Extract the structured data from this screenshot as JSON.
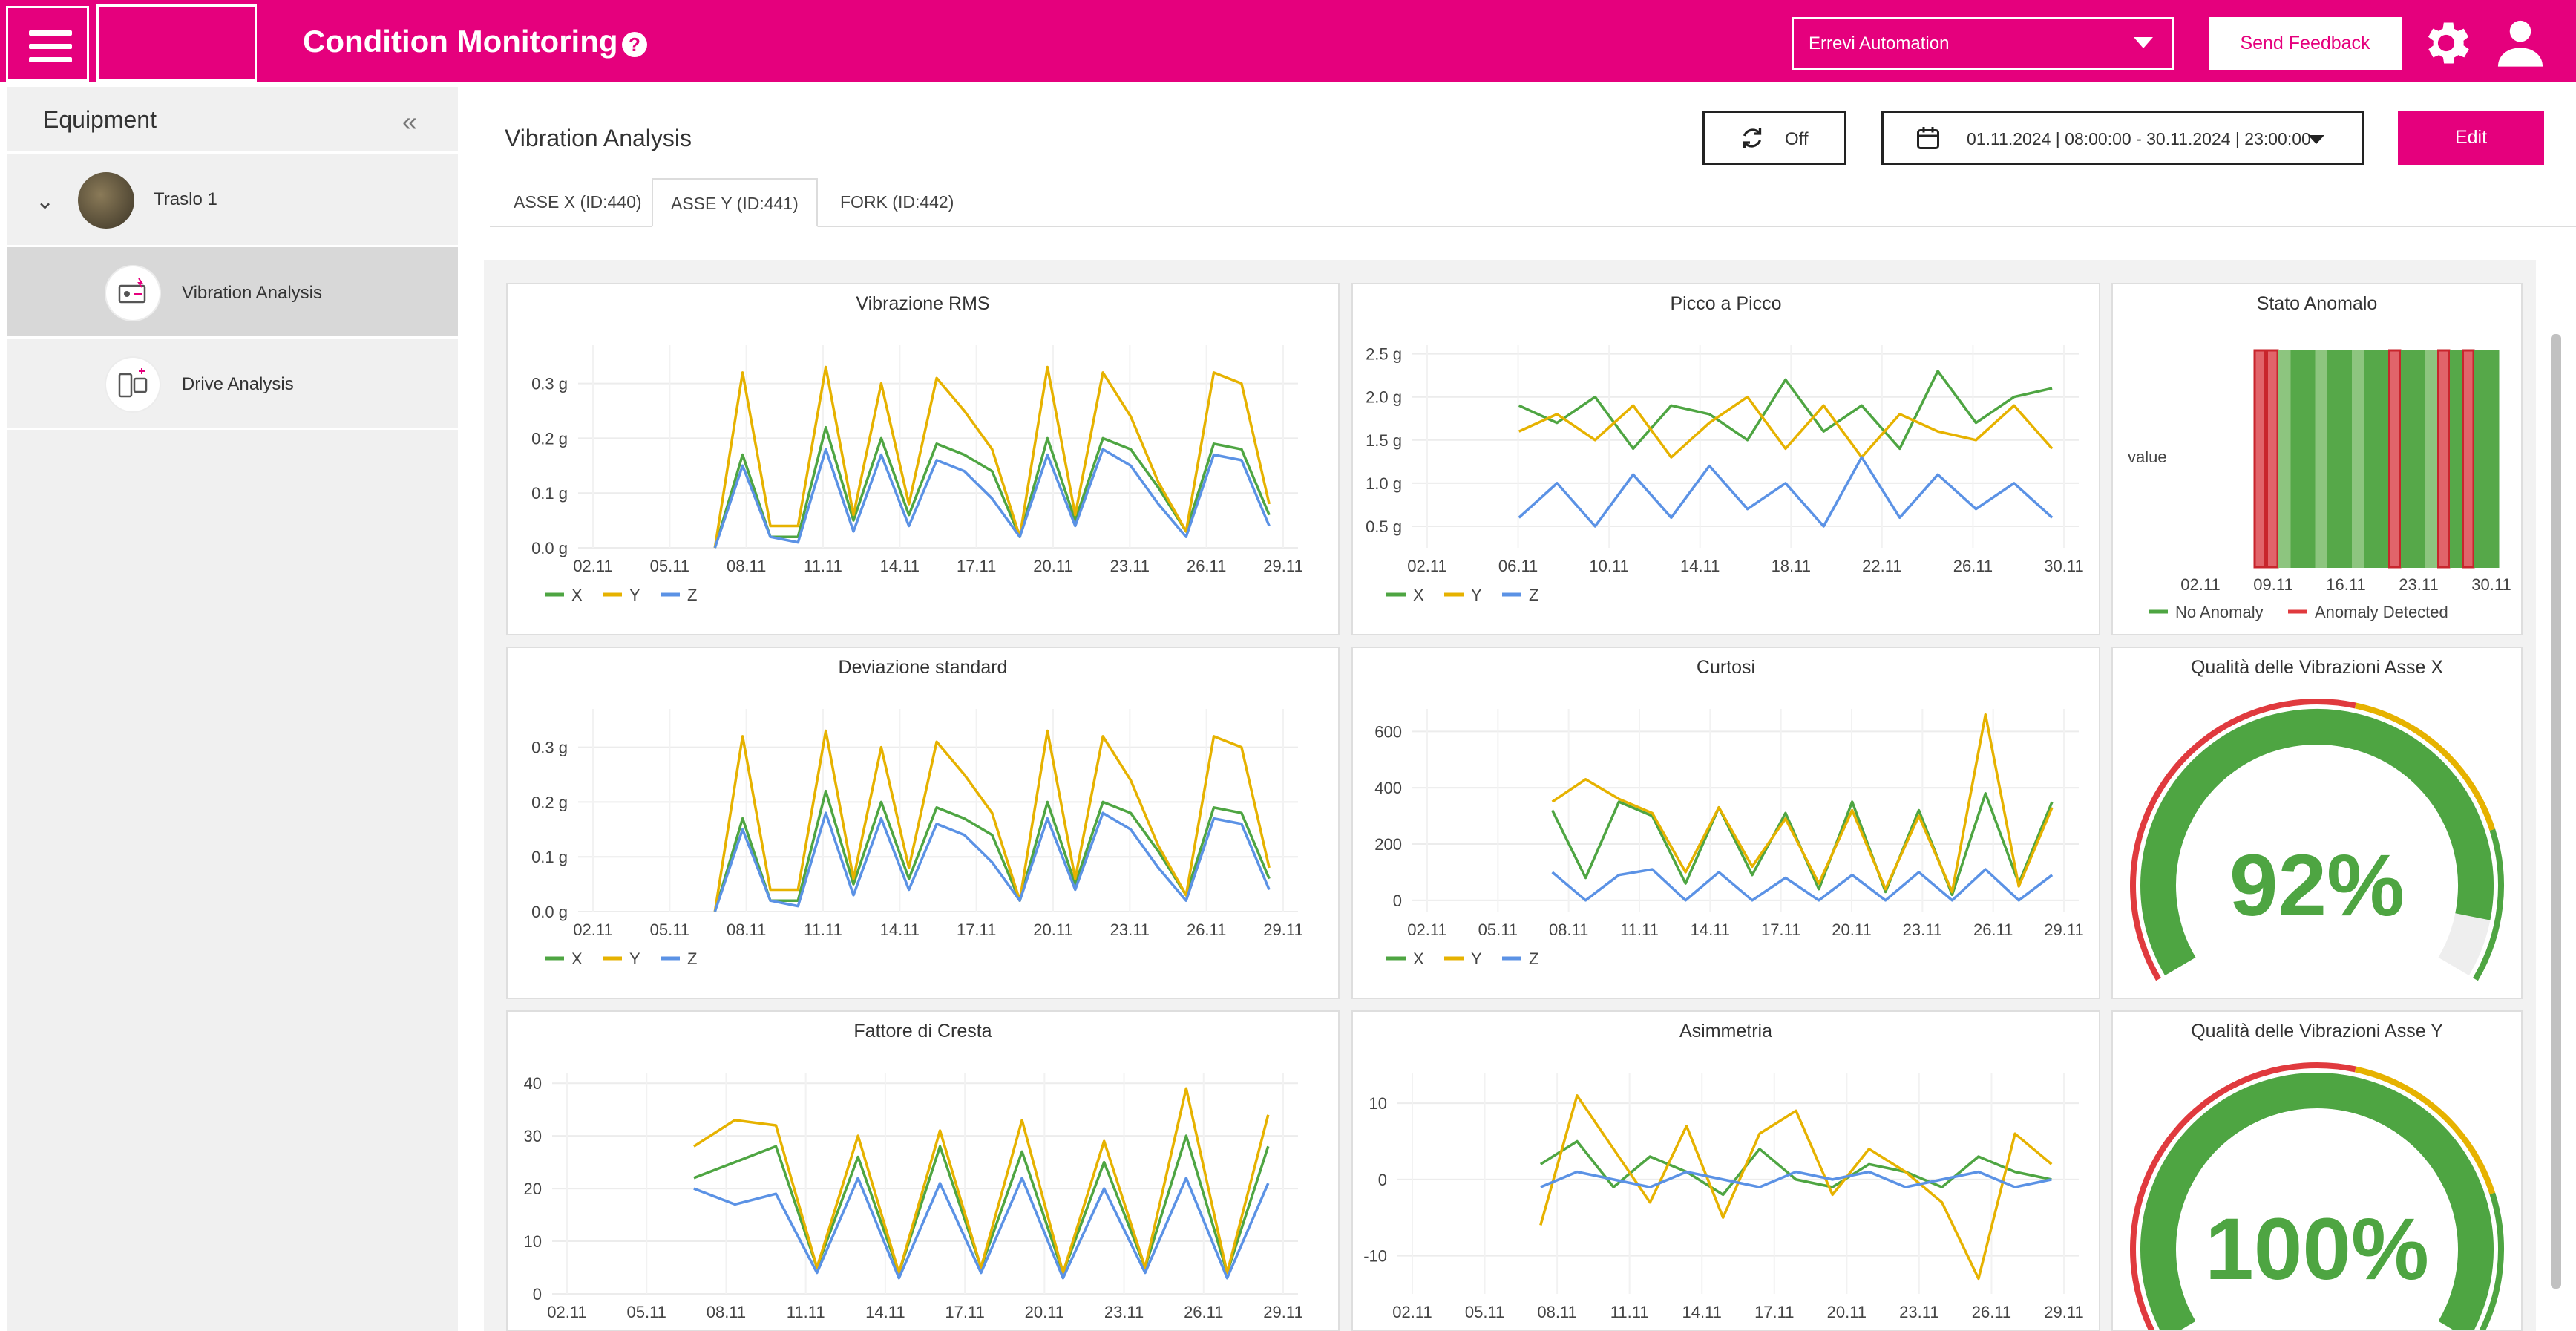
{
  "app": {
    "title": "Condition Monitoring"
  },
  "header": {
    "organization": "Errevi Automation",
    "feedback_label": "Send Feedback"
  },
  "sidebar": {
    "title": "Equipment",
    "items": [
      {
        "label": "Traslo 1"
      },
      {
        "label": "Vibration Analysis"
      },
      {
        "label": "Drive Analysis"
      }
    ]
  },
  "main": {
    "title": "Vibration Analysis",
    "refresh_label": "Off",
    "date_range": "01.11.2024 | 08:00:00 - 30.11.2024 | 23:00:00",
    "edit_label": "Edit",
    "tabs": [
      {
        "label": "ASSE X (ID:440)"
      },
      {
        "label": "ASSE Y (ID:441)"
      },
      {
        "label": "FORK (ID:442)"
      }
    ],
    "active_tab": "ASSE Y (ID:441)"
  },
  "colors": {
    "brand": "#e5007d",
    "series_x": "#4ea542",
    "series_y": "#e6b200",
    "series_z": "#5b92e5",
    "anomaly": "#e03a3e"
  },
  "chart_data": [
    {
      "type": "line",
      "title": "Vibrazione RMS",
      "x_ticks": [
        "02.11",
        "05.11",
        "08.11",
        "11.11",
        "14.11",
        "17.11",
        "20.11",
        "23.11",
        "26.11",
        "29.11"
      ],
      "y_ticks": [
        "0.0 g",
        "0.1 g",
        "0.2 g",
        "0.3 g"
      ],
      "ylim": [
        0,
        0.37
      ],
      "legend": [
        "X",
        "Y",
        "Z"
      ],
      "series": [
        {
          "name": "X",
          "values": [
            0.0,
            0.17,
            0.02,
            0.02,
            0.22,
            0.05,
            0.2,
            0.06,
            0.19,
            0.17,
            0.14,
            0.02,
            0.2,
            0.05,
            0.2,
            0.18,
            0.11,
            0.03,
            0.19,
            0.18,
            0.06
          ]
        },
        {
          "name": "Y",
          "values": [
            0.0,
            0.32,
            0.04,
            0.04,
            0.33,
            0.06,
            0.3,
            0.08,
            0.31,
            0.25,
            0.18,
            0.02,
            0.33,
            0.06,
            0.32,
            0.24,
            0.12,
            0.03,
            0.32,
            0.3,
            0.08
          ]
        },
        {
          "name": "Z",
          "values": [
            0.0,
            0.15,
            0.02,
            0.01,
            0.18,
            0.03,
            0.17,
            0.04,
            0.16,
            0.14,
            0.09,
            0.02,
            0.17,
            0.04,
            0.18,
            0.15,
            0.08,
            0.02,
            0.17,
            0.16,
            0.04
          ]
        }
      ]
    },
    {
      "type": "line",
      "title": "Picco a Picco",
      "x_ticks": [
        "02.11",
        "06.11",
        "10.11",
        "14.11",
        "18.11",
        "22.11",
        "26.11",
        "30.11"
      ],
      "y_ticks": [
        "0.5 g",
        "1.0 g",
        "1.5 g",
        "2.0 g",
        "2.5 g"
      ],
      "ylim": [
        0.25,
        2.6
      ],
      "legend": [
        "X",
        "Y",
        "Z"
      ],
      "series": [
        {
          "name": "X",
          "values": [
            1.9,
            1.7,
            2.0,
            1.4,
            1.9,
            1.8,
            1.5,
            2.2,
            1.6,
            1.9,
            1.4,
            2.3,
            1.7,
            2.0,
            2.1
          ]
        },
        {
          "name": "Y",
          "values": [
            1.6,
            1.8,
            1.5,
            1.9,
            1.3,
            1.7,
            2.0,
            1.4,
            1.9,
            1.3,
            1.8,
            1.6,
            1.5,
            1.9,
            1.4
          ]
        },
        {
          "name": "Z",
          "values": [
            0.6,
            1.0,
            0.5,
            1.1,
            0.6,
            1.2,
            0.7,
            1.0,
            0.5,
            1.3,
            0.6,
            1.1,
            0.7,
            1.0,
            0.6
          ]
        }
      ]
    },
    {
      "type": "heatmap",
      "title": "Stato Anomalo",
      "y_label": "value",
      "x_ticks": [
        "02.11",
        "09.11",
        "16.11",
        "23.11",
        "30.11"
      ],
      "legend": [
        "No Anomaly",
        "Anomaly Detected"
      ],
      "states": [
        1,
        1,
        0,
        0,
        0,
        0,
        0,
        0,
        0,
        0,
        0,
        1,
        0,
        0,
        0,
        1,
        0,
        1,
        0,
        0
      ]
    },
    {
      "type": "line",
      "title": "Deviazione standard",
      "x_ticks": [
        "02.11",
        "05.11",
        "08.11",
        "11.11",
        "14.11",
        "17.11",
        "20.11",
        "23.11",
        "26.11",
        "29.11"
      ],
      "y_ticks": [
        "0.0 g",
        "0.1 g",
        "0.2 g",
        "0.3 g"
      ],
      "ylim": [
        0,
        0.37
      ],
      "legend": [
        "X",
        "Y",
        "Z"
      ],
      "series": [
        {
          "name": "X",
          "values": [
            0.0,
            0.17,
            0.02,
            0.02,
            0.22,
            0.05,
            0.2,
            0.06,
            0.19,
            0.17,
            0.14,
            0.02,
            0.2,
            0.05,
            0.2,
            0.18,
            0.11,
            0.03,
            0.19,
            0.18,
            0.06
          ]
        },
        {
          "name": "Y",
          "values": [
            0.0,
            0.32,
            0.04,
            0.04,
            0.33,
            0.06,
            0.3,
            0.08,
            0.31,
            0.25,
            0.18,
            0.02,
            0.33,
            0.06,
            0.32,
            0.24,
            0.12,
            0.03,
            0.32,
            0.3,
            0.08
          ]
        },
        {
          "name": "Z",
          "values": [
            0.0,
            0.15,
            0.02,
            0.01,
            0.18,
            0.03,
            0.17,
            0.04,
            0.16,
            0.14,
            0.09,
            0.02,
            0.17,
            0.04,
            0.18,
            0.15,
            0.08,
            0.02,
            0.17,
            0.16,
            0.04
          ]
        }
      ]
    },
    {
      "type": "line",
      "title": "Curtosi",
      "x_ticks": [
        "02.11",
        "05.11",
        "08.11",
        "11.11",
        "14.11",
        "17.11",
        "20.11",
        "23.11",
        "26.11",
        "29.11"
      ],
      "y_ticks": [
        "0",
        "200",
        "400",
        "600"
      ],
      "ylim": [
        -40,
        680
      ],
      "legend": [
        "X",
        "Y",
        "Z"
      ],
      "series": [
        {
          "name": "X",
          "values": [
            320,
            80,
            350,
            300,
            60,
            330,
            90,
            310,
            40,
            350,
            30,
            320,
            20,
            380,
            60,
            350
          ]
        },
        {
          "name": "Y",
          "values": [
            350,
            430,
            360,
            310,
            100,
            330,
            120,
            290,
            60,
            320,
            40,
            300,
            30,
            660,
            50,
            330
          ]
        },
        {
          "name": "Z",
          "values": [
            100,
            0,
            90,
            110,
            0,
            100,
            0,
            80,
            0,
            90,
            0,
            100,
            0,
            110,
            0,
            90
          ]
        }
      ]
    },
    {
      "type": "gauge",
      "title": "Qualità delle Vibrazioni Asse X",
      "value": 92,
      "label": "92%"
    },
    {
      "type": "line",
      "title": "Fattore di Cresta",
      "x_ticks": [
        "02.11",
        "05.11",
        "08.11",
        "11.11",
        "14.11",
        "17.11",
        "20.11",
        "23.11",
        "26.11",
        "29.11"
      ],
      "y_ticks": [
        "0",
        "10",
        "20",
        "30",
        "40"
      ],
      "ylim": [
        0,
        42
      ],
      "legend": [
        "X",
        "Y",
        "Z"
      ],
      "series": [
        {
          "name": "X",
          "values": [
            22,
            25,
            28,
            5,
            26,
            4,
            28,
            5,
            27,
            4,
            25,
            5,
            30,
            4,
            28
          ]
        },
        {
          "name": "Y",
          "values": [
            28,
            33,
            32,
            5,
            30,
            4,
            31,
            5,
            33,
            4,
            29,
            5,
            39,
            4,
            34
          ]
        },
        {
          "name": "Z",
          "values": [
            20,
            17,
            19,
            4,
            22,
            3,
            21,
            4,
            22,
            3,
            20,
            4,
            22,
            3,
            21
          ]
        }
      ]
    },
    {
      "type": "line",
      "title": "Asimmetria",
      "x_ticks": [
        "02.11",
        "05.11",
        "08.11",
        "11.11",
        "14.11",
        "17.11",
        "20.11",
        "23.11",
        "26.11",
        "29.11"
      ],
      "y_ticks": [
        "-10",
        "0",
        "10"
      ],
      "ylim": [
        -15,
        14
      ],
      "legend": [
        "X",
        "Y",
        "Z"
      ],
      "series": [
        {
          "name": "X",
          "values": [
            2,
            5,
            -1,
            3,
            1,
            -2,
            4,
            0,
            -1,
            2,
            1,
            -1,
            3,
            1,
            0
          ]
        },
        {
          "name": "Y",
          "values": [
            -6,
            11,
            4,
            -3,
            7,
            -5,
            6,
            9,
            -2,
            4,
            1,
            -3,
            -13,
            6,
            2
          ]
        },
        {
          "name": "Z",
          "values": [
            -1,
            1,
            0,
            -1,
            1,
            0,
            -1,
            1,
            0,
            1,
            -1,
            0,
            1,
            -1,
            0
          ]
        }
      ]
    },
    {
      "type": "gauge",
      "title": "Qualità delle Vibrazioni Asse Y",
      "value": 100,
      "label": "100%"
    }
  ]
}
